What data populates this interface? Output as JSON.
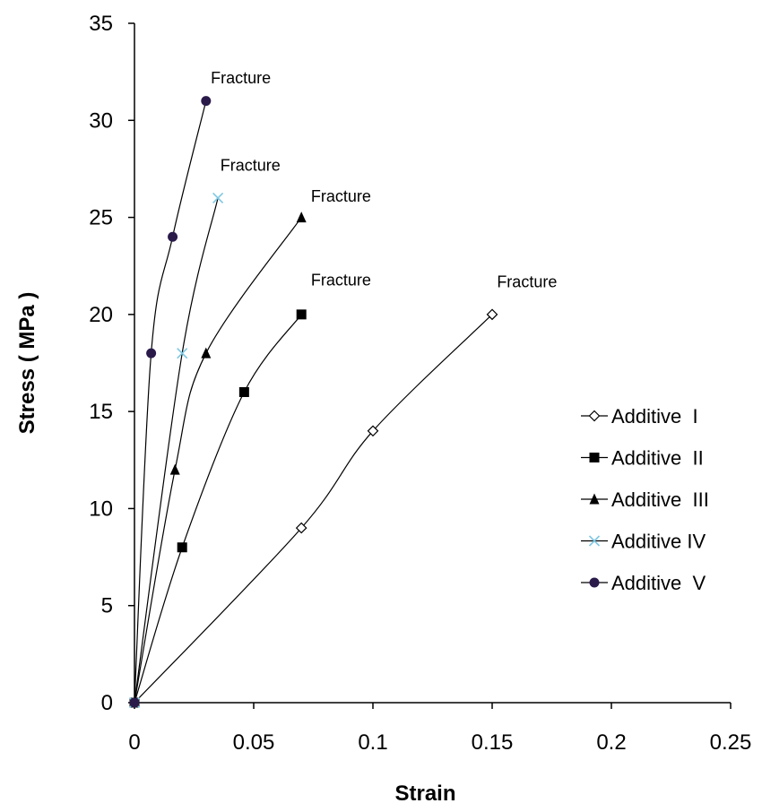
{
  "chart_data": {
    "type": "line",
    "title": "",
    "xlabel": "Strain",
    "ylabel": "Stress ( MPa )",
    "xlim": [
      0,
      0.25
    ],
    "ylim": [
      0,
      35
    ],
    "x_ticks": [
      "0",
      "0.05",
      "0.1",
      "0.15",
      "0.2",
      "0.25"
    ],
    "y_ticks": [
      "0",
      "5",
      "10",
      "15",
      "20",
      "25",
      "30",
      "35"
    ],
    "grid": false,
    "legend_position": "right",
    "series": [
      {
        "name": "Additive  I",
        "marker": "open-diamond",
        "color": "#000000",
        "points": [
          [
            0,
            0
          ],
          [
            0.07,
            9
          ],
          [
            0.1,
            14
          ],
          [
            0.15,
            20
          ]
        ]
      },
      {
        "name": "Additive  II",
        "marker": "filled-square",
        "color": "#000000",
        "points": [
          [
            0,
            0
          ],
          [
            0.02,
            8
          ],
          [
            0.046,
            16
          ],
          [
            0.07,
            20
          ]
        ]
      },
      {
        "name": "Additive  III",
        "marker": "filled-triangle",
        "color": "#000000",
        "points": [
          [
            0,
            0
          ],
          [
            0.017,
            12
          ],
          [
            0.03,
            18
          ],
          [
            0.07,
            25
          ]
        ]
      },
      {
        "name": "Additive IV",
        "marker": "x-cross",
        "color": "#7ec8e3",
        "points": [
          [
            0,
            0
          ],
          [
            0.02,
            18
          ],
          [
            0.035,
            26
          ]
        ]
      },
      {
        "name": "Additive  V",
        "marker": "filled-circle",
        "color": "#2a1a4a",
        "points": [
          [
            0,
            0
          ],
          [
            0.007,
            18
          ],
          [
            0.016,
            24
          ],
          [
            0.03,
            31
          ]
        ]
      }
    ],
    "annotations": [
      {
        "text": "Fracture",
        "x": 0.032,
        "y": 31.9
      },
      {
        "text": "Fracture",
        "x": 0.036,
        "y": 27.4
      },
      {
        "text": "Fracture",
        "x": 0.074,
        "y": 25.8
      },
      {
        "text": "Fracture",
        "x": 0.074,
        "y": 21.5
      },
      {
        "text": "Fracture",
        "x": 0.152,
        "y": 21.4
      }
    ]
  }
}
